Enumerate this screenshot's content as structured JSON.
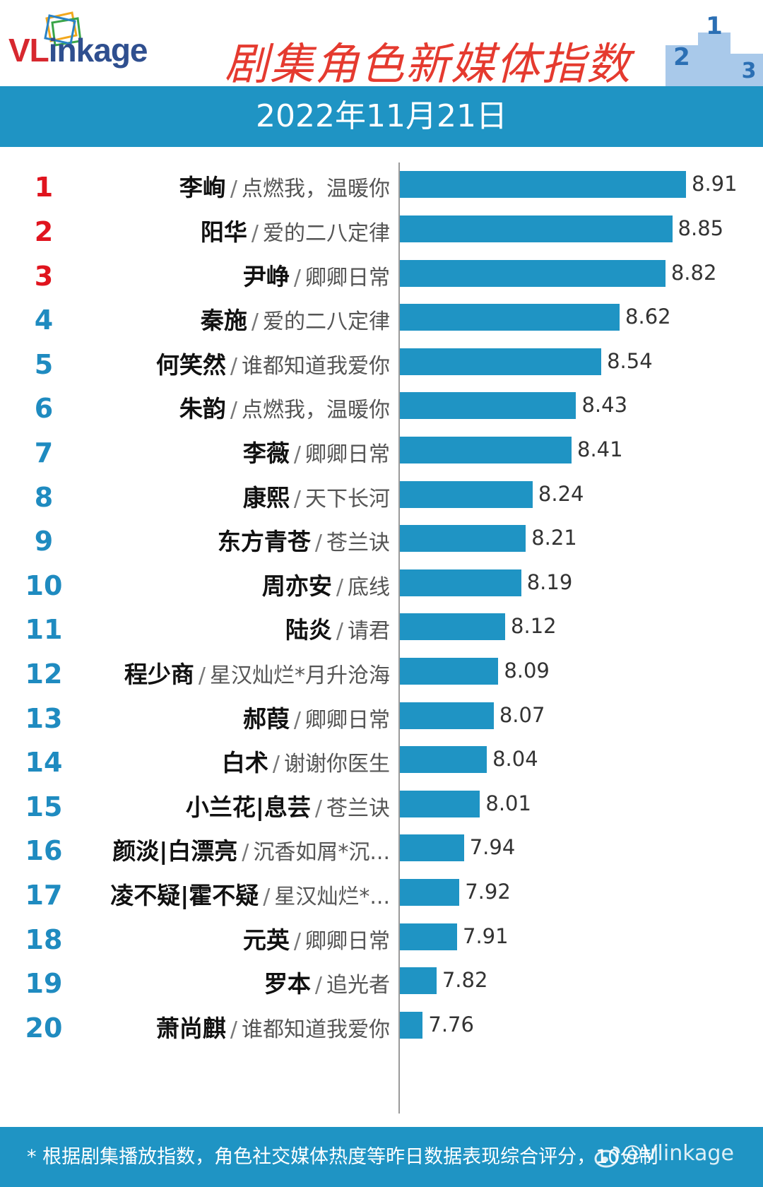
{
  "header": {
    "logo_vl": "VL",
    "logo_rest": "inkage",
    "title": "剧集角色新媒体指数",
    "podium_digits": [
      "2",
      "1",
      "3"
    ]
  },
  "date": "2022年11月21日",
  "colors": {
    "bar": "#1f94c4",
    "title": "#e53a2f",
    "rank_top": "#e0141e",
    "rank_other": "#1f8bc0"
  },
  "chart_data": {
    "type": "bar",
    "orientation": "horizontal",
    "title": "剧集角色新媒体指数",
    "subtitle": "2022年11月21日",
    "value_unit": "10分制",
    "ranks": [
      "1",
      "2",
      "3",
      "4",
      "5",
      "6",
      "7",
      "8",
      "9",
      "10",
      "11",
      "12",
      "13",
      "14",
      "15",
      "16",
      "17",
      "18",
      "19",
      "20"
    ],
    "names": [
      "李峋",
      "阳华",
      "尹峥",
      "秦施",
      "何笑然",
      "朱韵",
      "李薇",
      "康熙",
      "东方青苍",
      "周亦安",
      "陆炎",
      "程少商",
      "郝葭",
      "白术",
      "小兰花|息芸",
      "颜淡|白漂亮",
      "凌不疑|霍不疑",
      "元英",
      "罗本",
      "萧尚麒"
    ],
    "dramas": [
      "点燃我，温暖你",
      "爱的二八定律",
      "卿卿日常",
      "爱的二八定律",
      "谁都知道我爱你",
      "点燃我，温暖你",
      "卿卿日常",
      "天下长河",
      "苍兰诀",
      "底线",
      "请君",
      "星汉灿烂*月升沧海",
      "卿卿日常",
      "谢谢你医生",
      "苍兰诀",
      "沉香如屑*沉...",
      "星汉灿烂*...",
      "卿卿日常",
      "追光者",
      "谁都知道我爱你"
    ],
    "separator": "/",
    "values": [
      8.91,
      8.85,
      8.82,
      8.62,
      8.54,
      8.43,
      8.41,
      8.24,
      8.21,
      8.19,
      8.12,
      8.09,
      8.07,
      8.04,
      8.01,
      7.94,
      7.92,
      7.91,
      7.82,
      7.76
    ],
    "value_labels": [
      "8.91",
      "8.85",
      "8.82",
      "8.62",
      "8.54",
      "8.43",
      "8.41",
      "8.24",
      "8.21",
      "8.19",
      "8.12",
      "8.09",
      "8.07",
      "8.04",
      "8.01",
      "7.94",
      "7.92",
      "7.91",
      "7.82",
      "7.76"
    ],
    "xlim": [
      7.66,
      8.91
    ]
  },
  "footer": {
    "note": "* 根据剧集播放指数，角色社交媒体热度等昨日数据表现综合评分，10分制",
    "watermark": "@Vlinkage"
  }
}
